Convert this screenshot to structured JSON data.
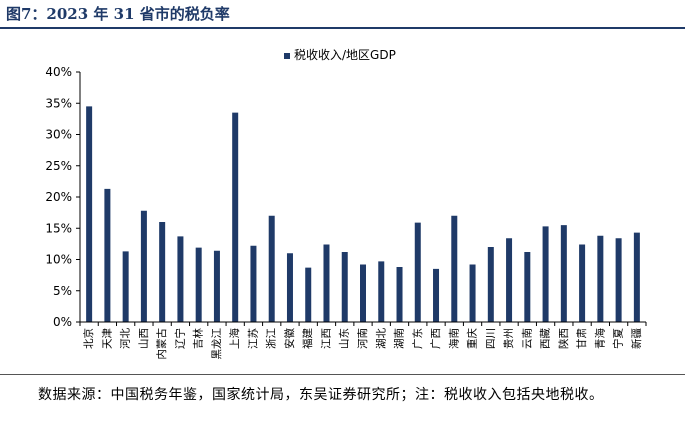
{
  "title": "图7：2023 年 31 省市的税负率",
  "source_note": "数据来源：中国税务年鉴，国家统计局，东吴证券研究所；注：税收收入包括央地税收。",
  "chart_data": {
    "type": "bar",
    "legend": [
      "税收收入/地区GDP"
    ],
    "legend_position": "top-center",
    "color": "#1f3a68",
    "categories": [
      "北京",
      "天津",
      "河北",
      "山西",
      "内蒙古",
      "辽宁",
      "吉林",
      "黑龙江",
      "上海",
      "江苏",
      "浙江",
      "安徽",
      "福建",
      "江西",
      "山东",
      "河南",
      "湖北",
      "湖南",
      "广东",
      "广西",
      "海南",
      "重庆",
      "四川",
      "贵州",
      "云南",
      "西藏",
      "陕西",
      "甘肃",
      "青海",
      "宁夏",
      "新疆"
    ],
    "values": [
      34.5,
      21.3,
      11.3,
      17.8,
      16.0,
      13.7,
      11.9,
      11.4,
      33.5,
      12.2,
      17.0,
      11.0,
      8.7,
      12.4,
      11.2,
      9.2,
      9.7,
      8.8,
      15.9,
      8.5,
      17.0,
      9.2,
      12.0,
      13.4,
      11.2,
      15.3,
      15.5,
      12.4,
      13.8,
      13.4,
      14.3
    ],
    "y_ticks": [
      "0%",
      "5%",
      "10%",
      "15%",
      "20%",
      "25%",
      "30%",
      "35%",
      "40%"
    ],
    "ylim": [
      0,
      40
    ],
    "grid": false
  }
}
